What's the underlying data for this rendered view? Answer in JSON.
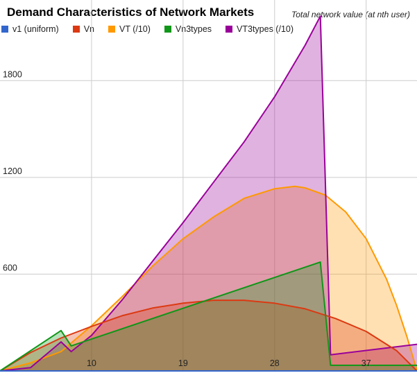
{
  "chart_data": {
    "type": "area",
    "title": "Demand Characteristics of Network Markets",
    "subtitle": "Total network value (at nth user)",
    "xlabel": "",
    "ylabel": "",
    "x_ticks": [
      10,
      19,
      28,
      37
    ],
    "y_ticks": [
      600,
      1200,
      1800
    ],
    "xlim": [
      1,
      42
    ],
    "ylim": [
      0,
      2300
    ],
    "grid": true,
    "legend_position": "top",
    "series": [
      {
        "name": "v1 (uniform)",
        "color": "#3366cc",
        "x": [
          1,
          42
        ],
        "y": [
          0,
          0
        ]
      },
      {
        "name": "Vn",
        "color": "#dc3912",
        "x": [
          1,
          4,
          7,
          10,
          13,
          16,
          19,
          22,
          25,
          28,
          31,
          34,
          37,
          40,
          42
        ],
        "y": [
          0,
          114,
          204,
          276,
          342,
          390,
          420,
          438,
          438,
          420,
          385,
          325,
          245,
          125,
          0
        ]
      },
      {
        "name": "VT (/10)",
        "color": "#ff9900",
        "x": [
          1,
          4,
          7,
          10,
          13,
          16,
          19,
          22,
          25,
          28,
          30,
          31,
          33,
          35,
          37,
          39,
          40,
          41,
          42
        ],
        "y": [
          0,
          50,
          120,
          280,
          460,
          650,
          820,
          955,
          1070,
          1130,
          1145,
          1135,
          1090,
          985,
          820,
          570,
          405,
          215,
          0
        ]
      },
      {
        "name": "Vn3types",
        "color": "#109618",
        "x": [
          1,
          7,
          8,
          32.5,
          33.5,
          42
        ],
        "y": [
          0,
          250,
          155,
          675,
          35,
          35
        ]
      },
      {
        "name": "VT3types (/10)",
        "color": "#990099",
        "x": [
          1,
          4,
          7,
          8,
          10,
          13,
          16,
          19,
          22,
          25,
          28,
          31,
          32.5,
          33.5,
          42
        ],
        "y": [
          0,
          20,
          180,
          120,
          220,
          440,
          680,
          920,
          1170,
          1420,
          1700,
          2020,
          2200,
          100,
          165
        ]
      }
    ]
  }
}
